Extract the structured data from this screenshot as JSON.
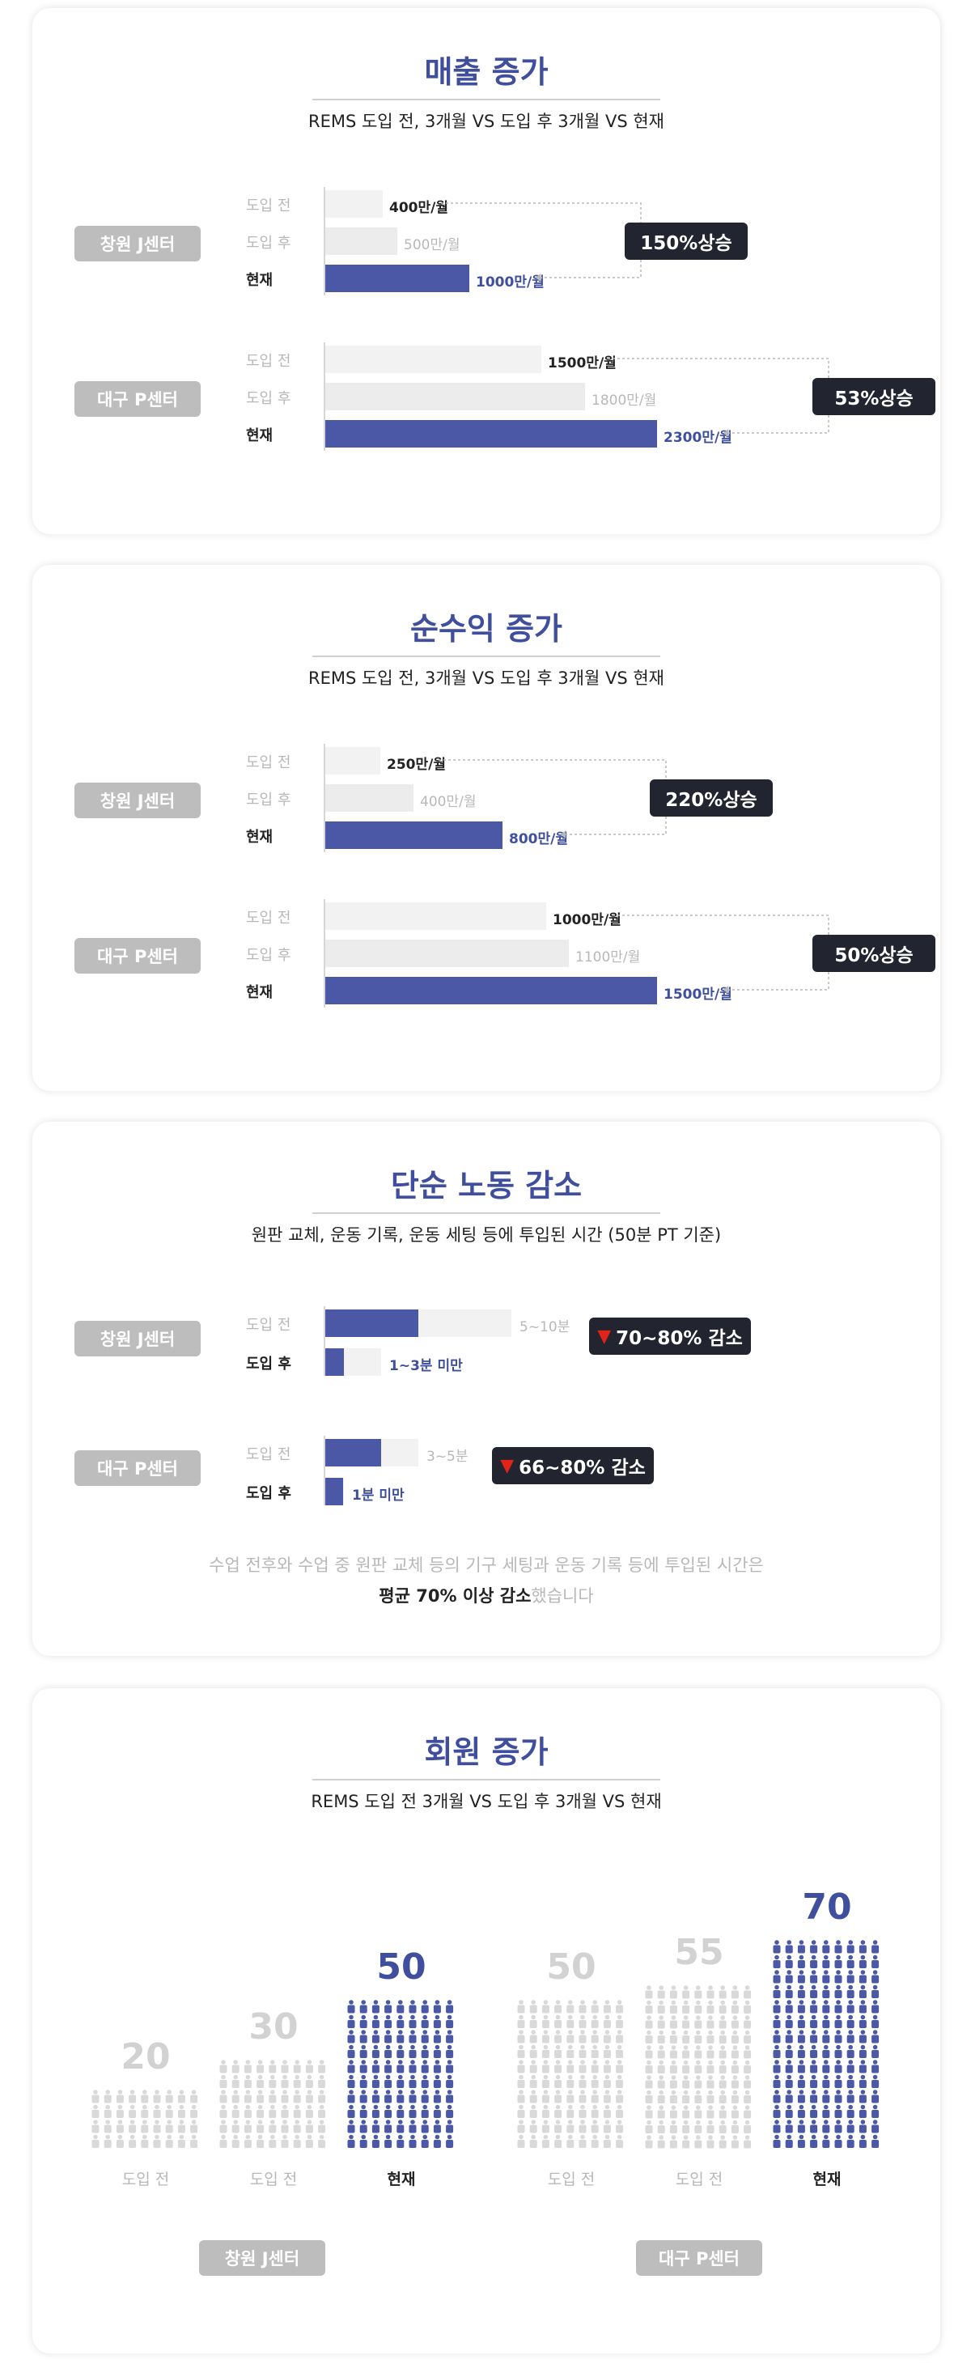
{
  "colors": {
    "accent": "#3f4f9e",
    "bar": "#4a58a6",
    "badge": "#222530",
    "down_arrow": "#e2231a"
  },
  "sections": {
    "sales": {
      "title": "매출 증가",
      "subtitle": "REMS 도입 전, 3개월 VS 도입 후 3개월 VS 현재",
      "row_labels": [
        "도입 전",
        "도입 후",
        "현재"
      ],
      "centers": [
        {
          "name": "창원 J센터",
          "values": [
            400,
            500,
            1000
          ],
          "value_labels": [
            "400만/월",
            "500만/월",
            "1000만/월"
          ],
          "badge": "150%상승"
        },
        {
          "name": "대구 P센터",
          "values": [
            1500,
            1800,
            2300
          ],
          "value_labels": [
            "1500만/월",
            "1800만/월",
            "2300만/월"
          ],
          "badge": "53%상승"
        }
      ]
    },
    "profit": {
      "title": "순수익 증가",
      "subtitle": "REMS 도입 전, 3개월 VS 도입 후 3개월 VS 현재",
      "row_labels": [
        "도입 전",
        "도입 후",
        "현재"
      ],
      "centers": [
        {
          "name": "창원 J센터",
          "values": [
            250,
            400,
            800
          ],
          "value_labels": [
            "250만/월",
            "400만/월",
            "800만/월"
          ],
          "badge": "220%상승"
        },
        {
          "name": "대구 P센터",
          "values": [
            1000,
            1100,
            1500
          ],
          "value_labels": [
            "1000만/월",
            "1100만/월",
            "1500만/월"
          ],
          "badge": "50%상승"
        }
      ]
    },
    "labor": {
      "title": "단순 노동 감소",
      "subtitle": "원판 교체, 운동 기록, 운동 세팅 등에 투입된 시간 (50분 PT 기준)",
      "row_labels": [
        "도입 전",
        "도입 후"
      ],
      "centers": [
        {
          "name": "창원 J센터",
          "before_range": [
            5,
            10
          ],
          "after_range": [
            1,
            3
          ],
          "before_label": "5~10분",
          "after_label": "1~3분 미만",
          "badge": "70~80% 감소"
        },
        {
          "name": "대구 P센터",
          "before_range": [
            3,
            5
          ],
          "after_range": [
            0,
            1
          ],
          "before_label": "3~5분",
          "after_label": "1분 미만",
          "badge": "66~80% 감소"
        }
      ],
      "note_line1": "수업 전후와 수업 중 원판 교체 등의 기구 세팅과 운동 기록 등에 투입된 시간은",
      "note_bold": "평균 70% 이상 감소",
      "note_tail": "했습니다"
    },
    "members": {
      "title": "회원 증가",
      "subtitle": "REMS 도입 전 3개월 VS 도입 후 3개월 VS 현재",
      "centers": [
        {
          "name": "창원 J센터",
          "values": [
            20,
            30,
            50
          ],
          "labels": [
            "도입 전",
            "도입 전",
            "현재"
          ]
        },
        {
          "name": "대구 P센터",
          "values": [
            50,
            55,
            70
          ],
          "labels": [
            "도입 전",
            "도입 전",
            "현재"
          ]
        }
      ]
    }
  },
  "chart_data": [
    {
      "type": "bar",
      "title": "매출 증가",
      "categories": [
        "도입 전",
        "도입 후",
        "현재"
      ],
      "series": [
        {
          "name": "창원 J센터",
          "values": [
            400,
            500,
            1000
          ]
        },
        {
          "name": "대구 P센터",
          "values": [
            1500,
            1800,
            2300
          ]
        }
      ]
    },
    {
      "type": "bar",
      "title": "순수익 증가",
      "categories": [
        "도입 전",
        "도입 후",
        "현재"
      ],
      "series": [
        {
          "name": "창원 J센터",
          "values": [
            250,
            400,
            800
          ]
        },
        {
          "name": "대구 P센터",
          "values": [
            1000,
            1100,
            1500
          ]
        }
      ]
    },
    {
      "type": "bar",
      "title": "단순 노동 감소",
      "categories": [
        "도입 전",
        "도입 후"
      ],
      "series": [
        {
          "name": "창원 J센터",
          "values": [
            [
              5,
              10
            ],
            [
              1,
              3
            ]
          ]
        },
        {
          "name": "대구 P센터",
          "values": [
            [
              3,
              5
            ],
            [
              0,
              1
            ]
          ]
        }
      ]
    },
    {
      "type": "bar",
      "title": "회원 증가",
      "categories": [
        "도입 전",
        "도입 전",
        "현재"
      ],
      "series": [
        {
          "name": "창원 J센터",
          "values": [
            20,
            30,
            50
          ]
        },
        {
          "name": "대구 P센터",
          "values": [
            50,
            55,
            70
          ]
        }
      ]
    }
  ]
}
